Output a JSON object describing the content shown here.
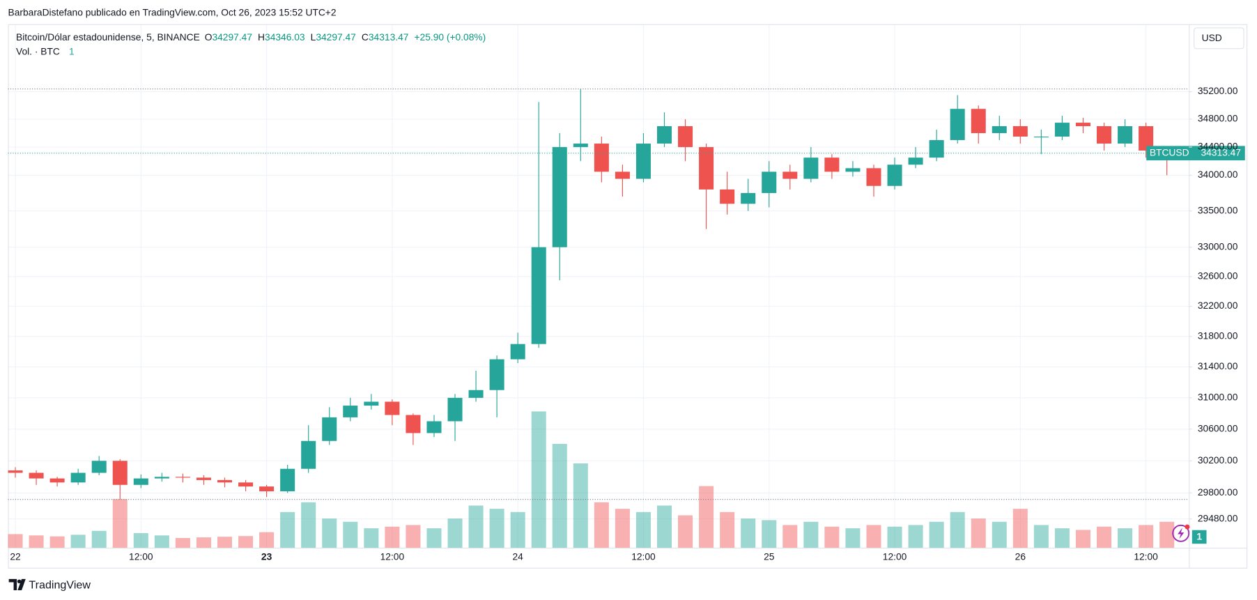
{
  "header": {
    "publisher": "BarbaraDistefano publicado en TradingView.com, Oct 26, 2023 15:52 UTC+2",
    "brand": "TradingView"
  },
  "currency_button": "USD",
  "legend": {
    "title": "Bitcoin/Dólar estadounidense, 5, BINANCE",
    "fields": [
      {
        "label": "O",
        "value": 34297.47
      },
      {
        "label": "H",
        "value": 34346.03
      },
      {
        "label": "L",
        "value": 34297.47
      },
      {
        "label": "C",
        "value": 34313.47
      }
    ],
    "change": "+25.90 (+0.08%)",
    "volume_label": "Vol. · BTC",
    "volume_value": "1"
  },
  "badge": "1",
  "chart_data": {
    "type": "candlestick",
    "symbol": "BTCUSD",
    "up_color": "#26a69a",
    "down_color": "#ef5350",
    "log_scale": true,
    "grid": true,
    "x": [
      0,
      2,
      4,
      6,
      8,
      10,
      12,
      14,
      16,
      18,
      20,
      22,
      24,
      26,
      28,
      30,
      32,
      34,
      36,
      38,
      40,
      42,
      44,
      46,
      48,
      50,
      52,
      54,
      56,
      58,
      60,
      62,
      64,
      66,
      68,
      70,
      72,
      74,
      76,
      78,
      80,
      82,
      84,
      86,
      88,
      90,
      92,
      94,
      96,
      98,
      100,
      102,
      104,
      106,
      108,
      110
    ],
    "open": [
      30080,
      30050,
      29980,
      29930,
      30050,
      30200,
      29900,
      29980,
      30000,
      29990,
      29960,
      29930,
      29880,
      29820,
      30100,
      30450,
      30750,
      30900,
      30950,
      30780,
      30550,
      30700,
      31000,
      31100,
      31500,
      31700,
      33000,
      34400,
      34450,
      34050,
      33950,
      34450,
      34700,
      34400,
      33800,
      33600,
      33750,
      34050,
      33950,
      34250,
      34050,
      34100,
      33850,
      34150,
      34250,
      34500,
      34950,
      34600,
      34700,
      34550,
      34550,
      34750,
      34700,
      34450,
      34700,
      34350
    ],
    "high": [
      30120,
      30080,
      30000,
      30100,
      30260,
      30220,
      30030,
      30050,
      30040,
      30020,
      29990,
      29960,
      29900,
      30150,
      30650,
      30880,
      31000,
      31050,
      30980,
      30800,
      30780,
      31050,
      31350,
      31550,
      31850,
      35050,
      34600,
      35240,
      34550,
      34150,
      34600,
      34900,
      34800,
      34450,
      34050,
      33950,
      34200,
      34150,
      34400,
      34300,
      34200,
      34150,
      34250,
      34400,
      34650,
      35150,
      35000,
      34850,
      34800,
      34650,
      34850,
      34820,
      34750,
      34800,
      34750,
      34400
    ],
    "low": [
      29990,
      29900,
      29880,
      29900,
      30020,
      29720,
      29860,
      29940,
      29930,
      29900,
      29870,
      29820,
      29750,
      29800,
      30050,
      30400,
      30700,
      30850,
      30650,
      30400,
      30500,
      30450,
      30950,
      30750,
      31450,
      31650,
      32550,
      34200,
      33900,
      33700,
      33900,
      34400,
      34200,
      33250,
      33450,
      33500,
      33550,
      33800,
      33900,
      33950,
      33980,
      33700,
      33800,
      34100,
      34200,
      34450,
      34450,
      34500,
      34450,
      34300,
      34500,
      34600,
      34350,
      34400,
      34250,
      34000
    ],
    "close": [
      30050,
      29980,
      29930,
      30050,
      30200,
      29900,
      29980,
      30000,
      29990,
      29960,
      29930,
      29880,
      29820,
      30100,
      30450,
      30750,
      30900,
      30950,
      30780,
      30550,
      30700,
      31000,
      31100,
      31500,
      31700,
      33000,
      34400,
      34450,
      34050,
      33950,
      34450,
      34700,
      34400,
      33800,
      33600,
      33750,
      34050,
      33950,
      34250,
      34050,
      34100,
      33850,
      34150,
      34250,
      34500,
      34950,
      34600,
      34700,
      34550,
      34550,
      34750,
      34700,
      34450,
      34700,
      34350,
      34313.47
    ],
    "volume": [
      420,
      380,
      350,
      400,
      520,
      1500,
      450,
      380,
      300,
      320,
      340,
      360,
      480,
      1100,
      1400,
      900,
      800,
      600,
      650,
      700,
      600,
      900,
      1300,
      1200,
      1100,
      4200,
      3200,
      2600,
      1400,
      1200,
      1100,
      1300,
      1000,
      1900,
      1100,
      900,
      850,
      700,
      800,
      650,
      600,
      700,
      650,
      700,
      800,
      1100,
      900,
      800,
      1200,
      700,
      600,
      550,
      650,
      600,
      700,
      800
    ],
    "xlim": [
      -0.7,
      112.1
    ],
    "xticks": [
      {
        "value": 0,
        "label": "22"
      },
      {
        "value": 12,
        "label": "12:00"
      },
      {
        "value": 24,
        "label": "23"
      },
      {
        "value": 36,
        "label": "12:00"
      },
      {
        "value": 48,
        "label": "24"
      },
      {
        "value": 60,
        "label": "12:00"
      },
      {
        "value": 72,
        "label": "25"
      },
      {
        "value": 84,
        "label": "12:00"
      },
      {
        "value": 96,
        "label": "26"
      },
      {
        "value": 108,
        "label": "12:00"
      }
    ],
    "ylim": [
      29130,
      36200
    ],
    "yticks": [
      {
        "value": 29480,
        "label": "29480.00"
      },
      {
        "value": 29800,
        "label": "29800.00"
      },
      {
        "value": 30200,
        "label": "30200.00"
      },
      {
        "value": 30600,
        "label": "30600.00"
      },
      {
        "value": 31000,
        "label": "31000.00"
      },
      {
        "value": 31400,
        "label": "31400.00"
      },
      {
        "value": 31800,
        "label": "31800.00"
      },
      {
        "value": 32200,
        "label": "32200.00"
      },
      {
        "value": 32600,
        "label": "32600.00"
      },
      {
        "value": 33000,
        "label": "33000.00"
      },
      {
        "value": 33500,
        "label": "33500.00"
      },
      {
        "value": 34000,
        "label": "34000.00"
      },
      {
        "value": 34400,
        "label": "34400.00"
      },
      {
        "value": 34800,
        "label": "34800.00"
      },
      {
        "value": 35200,
        "label": "35200.00"
      }
    ]
  }
}
